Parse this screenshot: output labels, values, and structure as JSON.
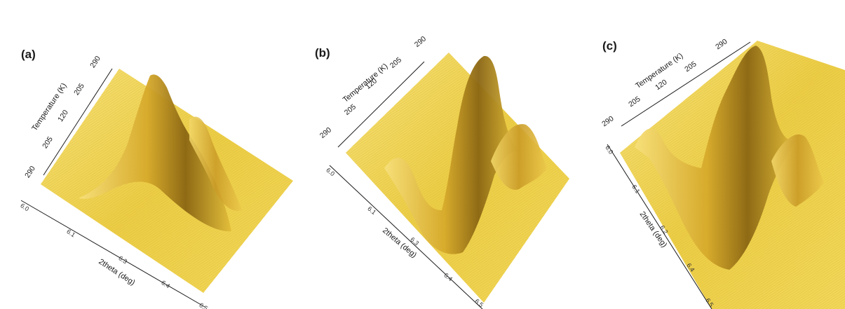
{
  "chart_data": [
    {
      "type": "surface",
      "panel_label": "(a)",
      "xlabel": "2theta (deg)",
      "ylabel": "Temperature (K)",
      "x_ticks": [
        "6.0",
        "6.1",
        "6.3",
        "6.4",
        "6.5"
      ],
      "y_ticks": [
        "290",
        "205",
        "120",
        "205",
        "290"
      ],
      "color": "#e8c83c",
      "peaks": [
        {
          "two_theta": 6.12,
          "temperature_range": "290-205-290",
          "relative_height": 1.0
        },
        {
          "two_theta": 6.27,
          "temperature_range": "290-205-290",
          "relative_height": 0.35
        }
      ]
    },
    {
      "type": "surface",
      "panel_label": "(b)",
      "xlabel": "2theta (deg)",
      "ylabel": "Temperature (K)",
      "x_ticks": [
        "6.0",
        "6.1",
        "6.3",
        "6.4",
        "6.5"
      ],
      "y_ticks": [
        "290",
        "205",
        "120",
        "205",
        "290"
      ],
      "y_ticks_printed": [
        "290",
        "205",
        "120",
        "205",
        "290"
      ],
      "ylabel_printed": "Temper.ature (K)",
      "color": "#e8c83c",
      "peaks": [
        {
          "two_theta": 6.1,
          "temperature_range": "290-205-290",
          "relative_height": 1.0
        },
        {
          "two_theta": 6.3,
          "temperature_range": "290-205-290",
          "relative_height": 0.55
        }
      ]
    },
    {
      "type": "surface",
      "panel_label": "(c)",
      "xlabel": "2theta (deg)",
      "ylabel": "Temperature (K)",
      "x_ticks": [
        "6.0",
        "6.1",
        "6.2",
        "6.4",
        "6.5"
      ],
      "y_ticks": [
        "290",
        "205",
        "120",
        "205",
        "290"
      ],
      "color": "#e8c83c",
      "peaks": [
        {
          "two_theta": 6.1,
          "temperature_range": "290-205-290",
          "relative_height": 1.0
        },
        {
          "two_theta": 6.3,
          "temperature_range": "290-205-290",
          "relative_height": 0.6
        }
      ]
    }
  ]
}
